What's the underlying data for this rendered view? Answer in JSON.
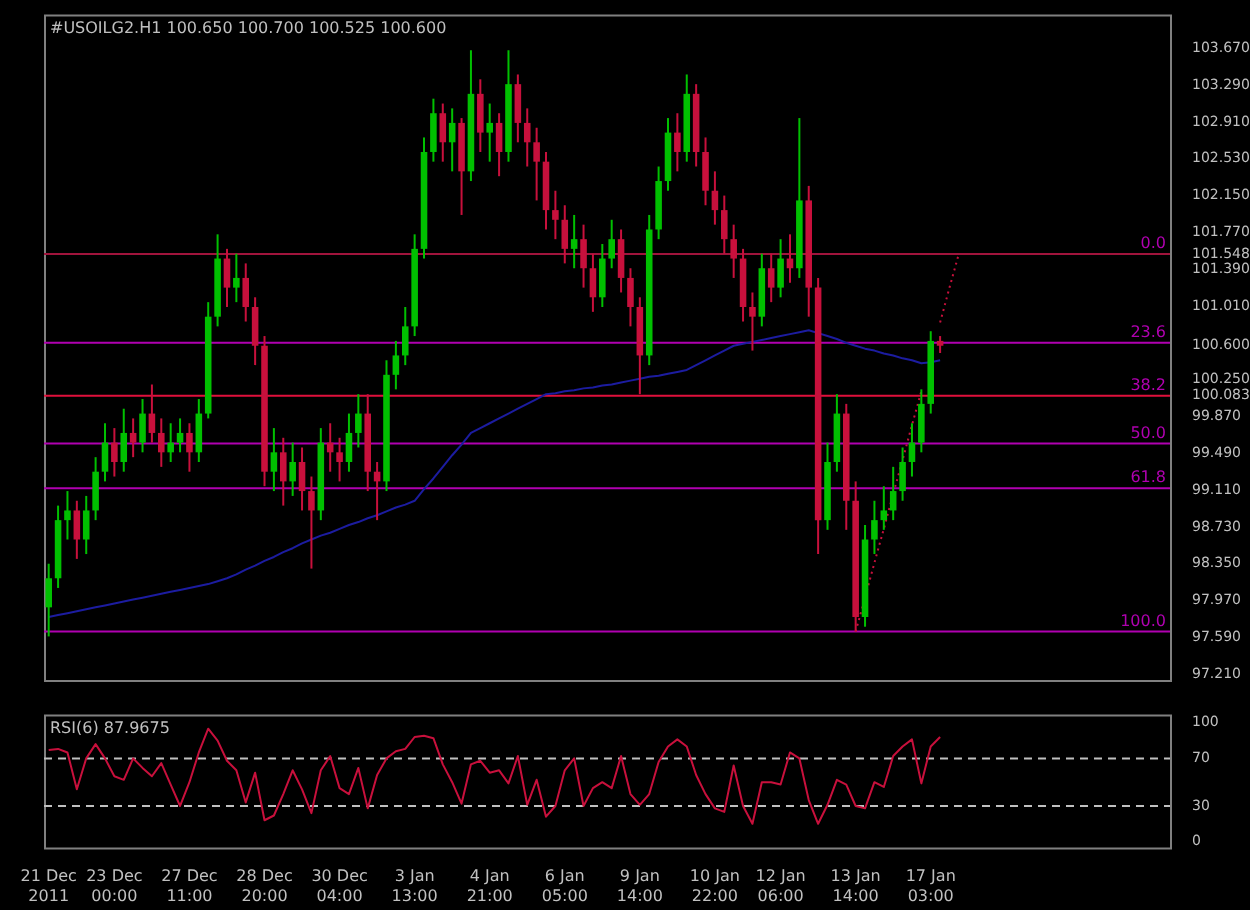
{
  "chart_data": [
    {
      "type": "candlestick",
      "title": "#USOILG2.H1 100.650 100.700 100.525 100.600",
      "categories": [
        null,
        null,
        null,
        null,
        null,
        null,
        null,
        null,
        null,
        null,
        null,
        null,
        null,
        null,
        null,
        null,
        null,
        null,
        null,
        null,
        null,
        null,
        null,
        null,
        null,
        null,
        null,
        null,
        null,
        null,
        null,
        null,
        null,
        null,
        null,
        null,
        null,
        null,
        null,
        null,
        null,
        null,
        null,
        null,
        null,
        null,
        null,
        null,
        null,
        null,
        null,
        null,
        null,
        null,
        null,
        null,
        null,
        null,
        null,
        null,
        null,
        null,
        null,
        null,
        null,
        null,
        null,
        null,
        null,
        null,
        null,
        null,
        null,
        null,
        null,
        null,
        null,
        null,
        null,
        null,
        null,
        null,
        null,
        null,
        null,
        null,
        null,
        null,
        null,
        null,
        null,
        null,
        null,
        null,
        null,
        null,
        null,
        null,
        null,
        null,
        null,
        null,
        null,
        null,
        null,
        null,
        null,
        null,
        null,
        null,
        null,
        null,
        null,
        null,
        null,
        null,
        null,
        null,
        null,
        null
      ],
      "ohlc": [
        [
          97.9,
          98.35,
          97.6,
          98.2
        ],
        [
          98.2,
          98.95,
          98.1,
          98.8
        ],
        [
          98.8,
          99.1,
          98.6,
          98.9
        ],
        [
          98.9,
          99.0,
          98.4,
          98.6
        ],
        [
          98.6,
          99.05,
          98.45,
          98.9
        ],
        [
          98.9,
          99.45,
          98.8,
          99.3
        ],
        [
          99.3,
          99.8,
          99.2,
          99.6
        ],
        [
          99.6,
          99.75,
          99.25,
          99.4
        ],
        [
          99.4,
          99.95,
          99.3,
          99.7
        ],
        [
          99.7,
          99.85,
          99.45,
          99.6
        ],
        [
          99.6,
          100.05,
          99.5,
          99.9
        ],
        [
          99.9,
          100.2,
          99.6,
          99.7
        ],
        [
          99.7,
          99.85,
          99.35,
          99.5
        ],
        [
          99.5,
          99.8,
          99.4,
          99.6
        ],
        [
          99.6,
          99.85,
          99.5,
          99.7
        ],
        [
          99.7,
          99.8,
          99.3,
          99.5
        ],
        [
          99.5,
          100.05,
          99.4,
          99.9
        ],
        [
          99.9,
          101.05,
          99.85,
          100.9
        ],
        [
          100.9,
          101.75,
          100.8,
          101.5
        ],
        [
          101.5,
          101.6,
          101.0,
          101.2
        ],
        [
          101.2,
          101.55,
          101.05,
          101.3
        ],
        [
          101.3,
          101.45,
          100.85,
          101.0
        ],
        [
          101.0,
          101.1,
          100.4,
          100.6
        ],
        [
          100.6,
          100.7,
          99.15,
          99.3
        ],
        [
          99.3,
          99.75,
          99.1,
          99.5
        ],
        [
          99.5,
          99.65,
          98.95,
          99.2
        ],
        [
          99.2,
          99.6,
          99.05,
          99.4
        ],
        [
          99.4,
          99.55,
          98.9,
          99.1
        ],
        [
          99.1,
          99.25,
          98.3,
          98.9
        ],
        [
          98.9,
          99.75,
          98.8,
          99.6
        ],
        [
          99.6,
          99.8,
          99.3,
          99.5
        ],
        [
          99.5,
          99.65,
          99.2,
          99.4
        ],
        [
          99.4,
          99.9,
          99.3,
          99.7
        ],
        [
          99.7,
          100.1,
          99.55,
          99.9
        ],
        [
          99.9,
          100.1,
          99.1,
          99.3
        ],
        [
          99.3,
          99.4,
          98.8,
          99.2
        ],
        [
          99.2,
          100.45,
          99.1,
          100.3
        ],
        [
          100.3,
          100.65,
          100.15,
          100.5
        ],
        [
          100.5,
          101.0,
          100.4,
          100.8
        ],
        [
          100.8,
          101.75,
          100.7,
          101.6
        ],
        [
          101.6,
          102.75,
          101.5,
          102.6
        ],
        [
          102.6,
          103.15,
          102.5,
          103.0
        ],
        [
          103.0,
          103.1,
          102.5,
          102.7
        ],
        [
          102.7,
          103.05,
          102.4,
          102.9
        ],
        [
          102.9,
          102.95,
          101.95,
          102.4
        ],
        [
          102.4,
          103.65,
          102.3,
          103.2
        ],
        [
          103.2,
          103.35,
          102.6,
          102.8
        ],
        [
          102.8,
          103.1,
          102.5,
          102.9
        ],
        [
          102.9,
          103.0,
          102.35,
          102.6
        ],
        [
          102.6,
          103.65,
          102.5,
          103.3
        ],
        [
          103.3,
          103.4,
          102.7,
          102.9
        ],
        [
          102.9,
          103.05,
          102.45,
          102.7
        ],
        [
          102.7,
          102.85,
          102.1,
          102.5
        ],
        [
          102.5,
          102.6,
          101.8,
          102.0
        ],
        [
          102.0,
          102.2,
          101.7,
          101.9
        ],
        [
          101.9,
          102.05,
          101.45,
          101.6
        ],
        [
          101.6,
          101.95,
          101.4,
          101.7
        ],
        [
          101.7,
          101.85,
          101.2,
          101.4
        ],
        [
          101.4,
          101.55,
          100.95,
          101.1
        ],
        [
          101.1,
          101.65,
          101.0,
          101.5
        ],
        [
          101.5,
          101.9,
          101.4,
          101.7
        ],
        [
          101.7,
          101.8,
          101.15,
          101.3
        ],
        [
          101.3,
          101.4,
          100.8,
          101.0
        ],
        [
          101.0,
          101.1,
          100.1,
          100.5
        ],
        [
          100.5,
          101.95,
          100.4,
          101.8
        ],
        [
          101.8,
          102.45,
          101.7,
          102.3
        ],
        [
          102.3,
          102.95,
          102.2,
          102.8
        ],
        [
          102.8,
          103.0,
          102.4,
          102.6
        ],
        [
          102.6,
          103.4,
          102.5,
          103.2
        ],
        [
          103.2,
          103.3,
          102.45,
          102.6
        ],
        [
          102.6,
          102.75,
          102.05,
          102.2
        ],
        [
          102.2,
          102.4,
          101.85,
          102.0
        ],
        [
          102.0,
          102.15,
          101.55,
          101.7
        ],
        [
          101.7,
          101.85,
          101.3,
          101.5
        ],
        [
          101.5,
          101.6,
          100.85,
          101.0
        ],
        [
          101.0,
          101.15,
          100.55,
          100.9
        ],
        [
          100.9,
          101.55,
          100.8,
          101.4
        ],
        [
          101.4,
          101.55,
          101.05,
          101.2
        ],
        [
          101.2,
          101.7,
          101.1,
          101.5
        ],
        [
          101.5,
          101.75,
          101.25,
          101.4
        ],
        [
          101.4,
          102.95,
          101.3,
          102.1
        ],
        [
          102.1,
          102.25,
          100.9,
          101.2
        ],
        [
          101.2,
          101.3,
          98.45,
          98.8
        ],
        [
          98.8,
          99.6,
          98.7,
          99.4
        ],
        [
          99.4,
          100.1,
          99.3,
          99.9
        ],
        [
          99.9,
          100.0,
          98.7,
          99.0
        ],
        [
          99.0,
          99.2,
          97.65,
          97.8
        ],
        [
          97.8,
          98.75,
          97.7,
          98.6
        ],
        [
          98.6,
          99.0,
          98.45,
          98.8
        ],
        [
          98.8,
          99.15,
          98.7,
          98.9
        ],
        [
          98.9,
          99.35,
          98.8,
          99.1
        ],
        [
          99.1,
          99.55,
          99.0,
          99.4
        ],
        [
          99.4,
          99.8,
          99.25,
          99.6
        ],
        [
          99.6,
          100.15,
          99.5,
          100.0
        ],
        [
          100.0,
          100.75,
          99.9,
          100.65
        ],
        [
          100.65,
          100.7,
          100.525,
          100.6
        ],
        null,
        null,
        null,
        null,
        null,
        null,
        null,
        null,
        null,
        null,
        null,
        null,
        null,
        null,
        null,
        null,
        null,
        null,
        null,
        null,
        null,
        null,
        null,
        null
      ],
      "colors": [
        "#00c000",
        "#00c000",
        "#00c000",
        "#c8103c",
        "#00c000",
        "#00c000",
        "#00c000",
        "#c8103c",
        "#00c000",
        "#c8103c",
        "#00c000",
        "#c8103c",
        "#c8103c",
        "#00c000",
        "#00c000",
        "#c8103c",
        "#00c000",
        "#00c000",
        "#00c000",
        "#c8103c",
        "#00c000",
        "#c8103c",
        "#c8103c",
        "#c8103c",
        "#00c000",
        "#c8103c",
        "#00c000",
        "#c8103c",
        "#c8103c",
        "#00c000",
        "#c8103c",
        "#c8103c",
        "#00c000",
        "#00c000",
        "#c8103c",
        "#c8103c",
        "#00c000",
        "#00c000",
        "#00c000",
        "#00c000",
        "#00c000",
        "#00c000",
        "#c8103c",
        "#00c000",
        "#c8103c",
        "#00c000",
        "#c8103c",
        "#00c000",
        "#c8103c",
        "#00c000",
        "#c8103c",
        "#c8103c",
        "#c8103c",
        "#c8103c",
        "#c8103c",
        "#c8103c",
        "#00c000",
        "#c8103c",
        "#c8103c",
        "#00c000",
        "#00c000",
        "#c8103c",
        "#c8103c",
        "#c8103c",
        "#00c000",
        "#00c000",
        "#00c000",
        "#c8103c",
        "#00c000",
        "#c8103c",
        "#c8103c",
        "#c8103c",
        "#c8103c",
        "#c8103c",
        "#c8103c",
        "#c8103c",
        "#00c000",
        "#c8103c",
        "#00c000",
        "#c8103c",
        "#00c000",
        "#c8103c",
        "#c8103c",
        "#00c000",
        "#00c000",
        "#c8103c",
        "#c8103c",
        "#00c000",
        "#00c000",
        "#00c000",
        "#00c000",
        "#00c000",
        "#00c000",
        "#00c000",
        "#00c000",
        "#c8103c",
        null,
        null,
        null,
        null,
        null,
        null,
        null,
        null,
        null,
        null,
        null,
        null,
        null,
        null,
        null,
        null,
        null,
        null,
        null,
        null,
        null,
        null,
        null,
        null
      ],
      "series": [
        {
          "type": "line",
          "color": "#1c1ca0",
          "values": [
            97.8,
            97.82,
            97.84,
            97.86,
            97.88,
            97.9,
            97.92,
            97.94,
            97.96,
            97.98,
            98.0,
            98.02,
            98.04,
            98.06,
            98.08,
            98.1,
            98.12,
            98.14,
            98.17,
            98.2,
            98.24,
            98.29,
            98.33,
            98.38,
            98.42,
            98.47,
            98.51,
            98.56,
            98.6,
            98.64,
            98.67,
            98.71,
            98.75,
            98.78,
            98.82,
            98.85,
            98.89,
            98.93,
            98.96,
            99.0,
            99.12,
            99.23,
            99.35,
            99.47,
            99.58,
            99.7,
            99.75,
            99.8,
            99.85,
            99.9,
            99.95,
            100.0,
            100.05,
            100.1,
            100.11,
            100.13,
            100.14,
            100.16,
            100.17,
            100.19,
            100.2,
            100.22,
            100.24,
            100.26,
            100.28,
            100.29,
            100.31,
            100.33,
            100.35,
            100.4,
            100.45,
            100.5,
            100.55,
            100.6,
            100.62,
            100.64,
            100.66,
            100.68,
            100.7,
            100.72,
            100.74,
            100.76,
            100.73,
            100.7,
            100.67,
            100.63,
            100.6,
            100.57,
            100.55,
            100.52,
            100.5,
            100.47,
            100.45,
            100.42,
            100.43,
            100.45,
            null,
            null,
            null,
            null,
            null,
            null,
            null,
            null,
            null,
            null,
            null,
            null,
            null,
            null,
            null,
            null,
            null,
            null,
            null,
            null,
            null,
            null,
            null,
            null
          ]
        },
        {
          "type": "line",
          "color": "#c8103c",
          "line_style": "dotted",
          "values": [
            null,
            null,
            null,
            null,
            null,
            null,
            null,
            null,
            null,
            null,
            null,
            null,
            null,
            null,
            null,
            null,
            null,
            null,
            null,
            null,
            null,
            null,
            null,
            null,
            null,
            null,
            null,
            null,
            null,
            null,
            null,
            null,
            null,
            null,
            null,
            null,
            null,
            null,
            null,
            null,
            null,
            null,
            null,
            null,
            null,
            null,
            null,
            null,
            null,
            null,
            null,
            null,
            null,
            null,
            null,
            null,
            null,
            null,
            null,
            null,
            null,
            null,
            null,
            null,
            null,
            null,
            null,
            null,
            null,
            null,
            null,
            null,
            null,
            null,
            null,
            null,
            null,
            null,
            null,
            null,
            null,
            null,
            null,
            null,
            null,
            null,
            97.65,
            98.0,
            98.36,
            98.71,
            99.07,
            99.42,
            99.78,
            100.13,
            null,
            100.84,
            101.2,
            101.55,
            null,
            null,
            null,
            null,
            null,
            null,
            null,
            null,
            null,
            null,
            null,
            null,
            null,
            null,
            null,
            null,
            null,
            null,
            null,
            null,
            null,
            null
          ]
        }
      ],
      "ylim": [
        97.15,
        104.02
      ],
      "yticks": [
        {
          "value": 103.67,
          "label": "103.670"
        },
        {
          "value": 103.29,
          "label": "103.290"
        },
        {
          "value": 102.91,
          "label": "102.910"
        },
        {
          "value": 102.53,
          "label": "102.530"
        },
        {
          "value": 102.15,
          "label": "102.150"
        },
        {
          "value": 101.77,
          "label": "101.770"
        },
        101.548,
        {
          "value": 101.39,
          "label": "101.390"
        },
        {
          "value": 101.01,
          "label": "101.010"
        },
        {
          "value": 100.6,
          "label": "100.600"
        },
        {
          "value": 100.25,
          "label": "100.250"
        },
        100.083,
        {
          "value": 99.87,
          "label": "99.870"
        },
        {
          "value": 99.49,
          "label": "99.490"
        },
        {
          "value": 99.11,
          "label": "99.110"
        },
        {
          "value": 98.73,
          "label": "98.730"
        },
        {
          "value": 98.35,
          "label": "98.350"
        },
        {
          "value": 97.97,
          "label": "97.970"
        },
        {
          "value": 97.59,
          "label": "97.590"
        },
        {
          "value": 97.21,
          "label": "97.210"
        }
      ],
      "ref_lines": [
        {
          "axis": "y",
          "value": 101.548,
          "color": "#a0143c"
        },
        {
          "axis": "y",
          "value": 100.63,
          "color": "#b000b0"
        },
        {
          "axis": "y",
          "value": 100.083,
          "color": "#e0103c"
        },
        {
          "axis": "y",
          "value": 99.59,
          "color": "#b000b0"
        },
        {
          "axis": "y",
          "value": 99.13,
          "color": "#b000b0"
        },
        {
          "axis": "y",
          "value": 97.65,
          "color": "#b000b0"
        }
      ],
      "annotations": [
        {
          "text": "0.0",
          "y": 101.548
        },
        {
          "text": "23.6",
          "y": 100.63
        },
        {
          "text": "38.2",
          "y": 100.083
        },
        {
          "text": "50.0",
          "y": 99.59
        },
        {
          "text": "61.8",
          "y": 99.13
        },
        {
          "text": "100.0",
          "y": 97.65
        }
      ],
      "grid": false,
      "tick_labels": "y"
    },
    {
      "type": "line",
      "title": "RSI(6) 87.9675",
      "categories": [
        "21 Dec 2011",
        null,
        null,
        null,
        null,
        null,
        null,
        "23 Dec 00:00",
        null,
        null,
        null,
        null,
        null,
        null,
        null,
        "27 Dec 11:00",
        null,
        null,
        null,
        null,
        null,
        null,
        null,
        "28 Dec 20:00",
        null,
        null,
        null,
        null,
        null,
        null,
        null,
        "30 Dec 04:00",
        null,
        null,
        null,
        null,
        null,
        null,
        null,
        "3 Jan 13:00",
        null,
        null,
        null,
        null,
        null,
        null,
        null,
        "4 Jan 21:00",
        null,
        null,
        null,
        null,
        null,
        null,
        null,
        "6 Jan 05:00",
        null,
        null,
        null,
        null,
        null,
        null,
        null,
        "9 Jan 14:00",
        null,
        null,
        null,
        null,
        null,
        null,
        null,
        "10 Jan 22:00",
        null,
        null,
        null,
        null,
        null,
        null,
        "12 Jan 06:00",
        null,
        null,
        null,
        null,
        null,
        null,
        null,
        "13 Jan 14:00",
        null,
        null,
        null,
        null,
        null,
        null,
        null,
        "17 Jan 03:00",
        null,
        null,
        null,
        null,
        null,
        null,
        null,
        null,
        null,
        null,
        null,
        null,
        null,
        null,
        null,
        null,
        null,
        null,
        null,
        null,
        null,
        null,
        null,
        null,
        null
      ],
      "series": [
        {
          "color": "#c8103c",
          "values": [
            77,
            78,
            75,
            44,
            70,
            82,
            70,
            55,
            52,
            70,
            62,
            55,
            66,
            48,
            30,
            50,
            75,
            95,
            85,
            68,
            60,
            33,
            58,
            18,
            22,
            40,
            60,
            44,
            24,
            60,
            72,
            45,
            40,
            62,
            28,
            56,
            70,
            76,
            78,
            88,
            89,
            87,
            65,
            50,
            32,
            65,
            68,
            58,
            60,
            49,
            72,
            31,
            52,
            21,
            30,
            60,
            70,
            30,
            45,
            50,
            45,
            72,
            40,
            31,
            40,
            67,
            80,
            86,
            80,
            56,
            40,
            28,
            25,
            64,
            30,
            15,
            50,
            50,
            48,
            75,
            70,
            35,
            15,
            31,
            52,
            48,
            30,
            28,
            50,
            46,
            72,
            80,
            86,
            49,
            80,
            88,
            null,
            null,
            null,
            null,
            null,
            null,
            null,
            null,
            null,
            null,
            null,
            null,
            null,
            null,
            null,
            null,
            null,
            null,
            null,
            null,
            null,
            null,
            null,
            null
          ]
        }
      ],
      "ylim": [
        -5,
        107
      ],
      "yticks": [
        0,
        30,
        70,
        100
      ],
      "ref_lines": [
        {
          "axis": "y",
          "value": 70,
          "color": "#c0c0c0",
          "line_style": "dashed"
        },
        {
          "axis": "y",
          "value": 30,
          "color": "#c0c0c0",
          "line_style": "dashed"
        }
      ],
      "grid": false
    }
  ]
}
